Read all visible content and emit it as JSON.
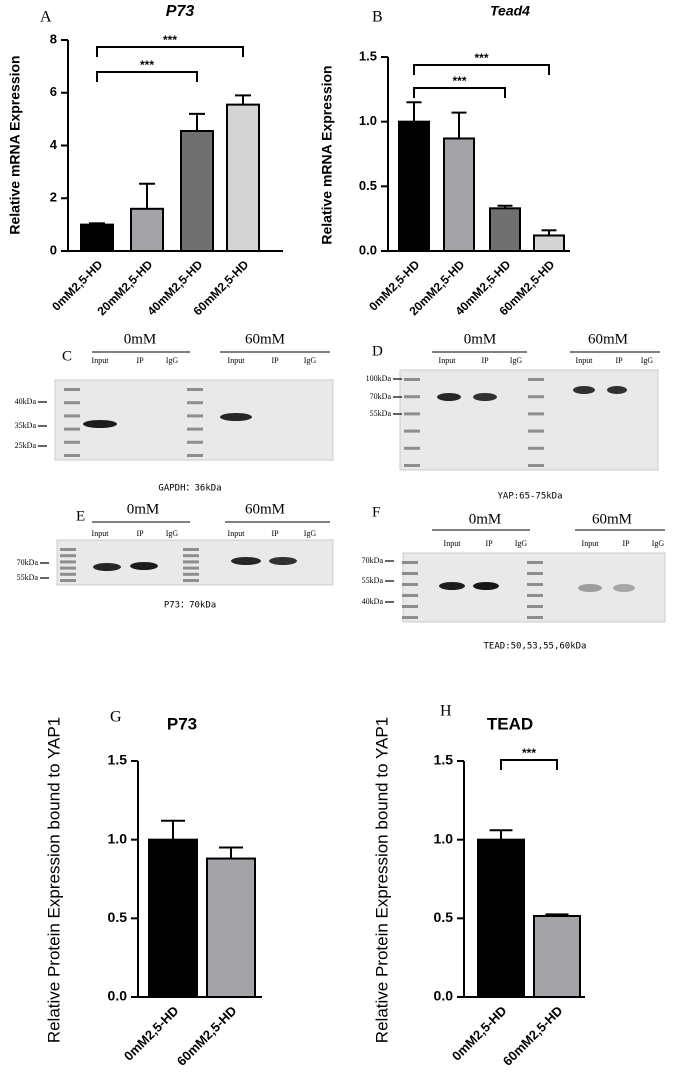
{
  "chart_data": [
    {
      "type": "bar",
      "panel": "A",
      "title": "P73",
      "title_italic": true,
      "ylabel": "Relative mRNA Expression",
      "categories": [
        "0mM2,5-HD",
        "20mM2,5-HD",
        "40mM2,5-HD",
        "60mM2,5-HD"
      ],
      "values": [
        1.0,
        1.6,
        4.55,
        5.55
      ],
      "errors": [
        0.05,
        0.95,
        0.65,
        0.35
      ],
      "colors": [
        "#000000",
        "#a3a3a8",
        "#707070",
        "#d4d4d4"
      ],
      "ylim": [
        0,
        8
      ],
      "yticks": [
        0,
        2,
        4,
        6,
        8
      ],
      "annotations": [
        {
          "pair": [
            0,
            2
          ],
          "label": "***"
        },
        {
          "pair": [
            0,
            3
          ],
          "label": "***"
        }
      ]
    },
    {
      "type": "bar",
      "panel": "B",
      "title": "Tead4",
      "title_italic": true,
      "ylabel": "Relative mRNA Expression",
      "categories": [
        "0mM2,5-HD",
        "20mM2,5-HD",
        "40mM2,5-HD",
        "60mM2,5-HD"
      ],
      "values": [
        1.0,
        0.87,
        0.33,
        0.12
      ],
      "errors": [
        0.15,
        0.2,
        0.02,
        0.04
      ],
      "colors": [
        "#000000",
        "#a3a3a8",
        "#707070",
        "#d4d4d4"
      ],
      "ylim": [
        0,
        1.5
      ],
      "yticks": [
        {
          "value": 0,
          "label": "0.0"
        },
        0.5,
        {
          "value": 1,
          "label": "1.0"
        },
        1.5
      ],
      "annotations": [
        {
          "pair": [
            0,
            2
          ],
          "label": "***"
        },
        {
          "pair": [
            0,
            3
          ],
          "label": "***"
        }
      ]
    },
    {
      "type": "bar",
      "panel": "G",
      "title": "P73",
      "title_italic": false,
      "ylabel": "Relative Protein Expression  bound to YAP1",
      "categories": [
        "0mM2,5-HD",
        "60mM2,5-HD"
      ],
      "values": [
        1.0,
        0.88
      ],
      "errors": [
        0.12,
        0.07
      ],
      "colors": [
        "#000000",
        "#a3a3a8"
      ],
      "ylim": [
        0,
        1.5
      ],
      "yticks": [
        {
          "value": 0,
          "label": "0.0"
        },
        0.5,
        {
          "value": 1,
          "label": "1.0"
        },
        1.5
      ],
      "annotations": []
    },
    {
      "type": "bar",
      "panel": "H",
      "title": "TEAD",
      "title_italic": false,
      "ylabel": "Relative Protein Expression  bound to YAP1",
      "categories": [
        "0mM2,5-HD",
        "60mM2,5-HD"
      ],
      "values": [
        1.0,
        0.515
      ],
      "errors": [
        0.06,
        0.01
      ],
      "colors": [
        "#000000",
        "#a3a3a8"
      ],
      "ylim": [
        0,
        1.5
      ],
      "yticks": [
        {
          "value": 0,
          "label": "0.0"
        },
        0.5,
        {
          "value": 1,
          "label": "1.0"
        },
        1.5
      ],
      "annotations": [
        {
          "pair": [
            0,
            1
          ],
          "label": "***"
        }
      ]
    }
  ],
  "blots": [
    {
      "panel": "C",
      "groups": [
        "0mM",
        "60mM"
      ],
      "lanes": [
        "Input",
        "IP",
        "IgG",
        "Input",
        "IP",
        "IgG"
      ],
      "markers": [
        "40kDa",
        "35kDa",
        "25kDa"
      ],
      "caption": "GAPDH：36kDa"
    },
    {
      "panel": "D",
      "groups": [
        "0mM",
        "60mM"
      ],
      "lanes": [
        "Input",
        "IP",
        "IgG",
        "Input",
        "IP",
        "IgG"
      ],
      "markers": [
        "100kDa",
        "70kDa",
        "55kDa"
      ],
      "caption": "YAP:65-75kDa"
    },
    {
      "panel": "E",
      "groups": [
        "0mM",
        "60mM"
      ],
      "lanes": [
        "Input",
        "IP",
        "IgG",
        "Input",
        "IP",
        "IgG"
      ],
      "markers": [
        "70kDa",
        "55kDa"
      ],
      "caption": "P73：70kDa"
    },
    {
      "panel": "F",
      "groups": [
        "0mM",
        "60mM"
      ],
      "lanes": [
        "Input",
        "IP",
        "IgG",
        "Input",
        "IP",
        "IgG"
      ],
      "markers": [
        "70kDa",
        "55kDa",
        "40kDa"
      ],
      "caption": "TEAD:50,53,55,60kDa"
    }
  ]
}
